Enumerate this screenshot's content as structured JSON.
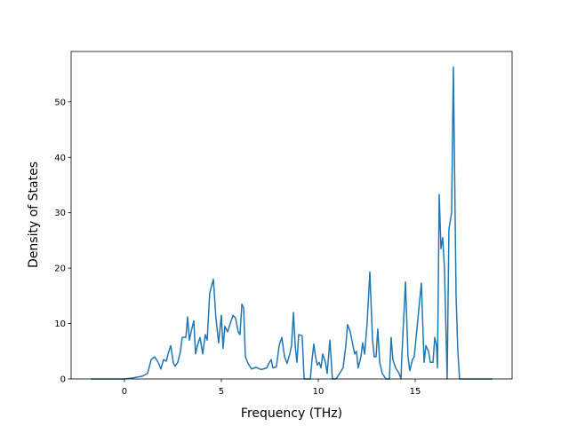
{
  "chart_data": {
    "type": "line",
    "xlabel": "Frequency (THz)",
    "ylabel": "Density of States",
    "xlim": [
      -2.75,
      20.0
    ],
    "ylim": [
      0,
      59.1
    ],
    "xticks": [
      0,
      5,
      10,
      15
    ],
    "yticks": [
      0,
      10,
      20,
      30,
      40,
      50
    ],
    "series": [
      {
        "color": "#1f77b4",
        "x": [
          -1.74,
          0,
          0.46,
          0.92,
          1.19,
          1.38,
          1.56,
          1.74,
          1.88,
          2.02,
          2.16,
          2.29,
          2.39,
          2.52,
          2.61,
          2.75,
          2.89,
          2.98,
          3.17,
          3.26,
          3.35,
          3.44,
          3.58,
          3.67,
          3.76,
          3.9,
          4.04,
          4.17,
          4.27,
          4.4,
          4.59,
          4.72,
          4.86,
          5.0,
          5.09,
          5.18,
          5.32,
          5.46,
          5.6,
          5.73,
          5.87,
          5.96,
          6.06,
          6.15,
          6.24,
          6.38,
          6.56,
          6.79,
          7.06,
          7.34,
          7.48,
          7.57,
          7.66,
          7.84,
          7.98,
          8.12,
          8.26,
          8.39,
          8.53,
          8.62,
          8.72,
          8.81,
          8.9,
          8.99,
          9.17,
          9.27,
          9.59,
          9.68,
          9.77,
          9.86,
          9.95,
          10.05,
          10.14,
          10.23,
          10.37,
          10.46,
          10.6,
          10.73,
          10.92,
          11.28,
          11.42,
          11.51,
          11.65,
          11.79,
          11.88,
          11.97,
          12.06,
          12.2,
          12.29,
          12.39,
          12.52,
          12.66,
          12.8,
          12.89,
          12.98,
          13.07,
          13.17,
          13.3,
          13.49,
          13.67,
          13.76,
          13.85,
          13.99,
          14.17,
          14.27,
          14.31,
          14.5,
          14.63,
          14.72,
          14.86,
          14.95,
          15.09,
          15.32,
          15.46,
          15.55,
          15.69,
          15.78,
          15.92,
          16.01,
          16.1,
          16.15,
          16.24,
          16.33,
          16.42,
          16.51,
          16.65,
          16.74,
          16.88,
          16.97,
          17.11,
          17.2,
          17.29,
          18.99
        ],
        "values": [
          0,
          0,
          0.2,
          0.5,
          1,
          3.5,
          4,
          3,
          1.8,
          3.5,
          3.2,
          5,
          6,
          3,
          2.3,
          3,
          5,
          7.5,
          7.5,
          11.2,
          7,
          8.5,
          10.5,
          4.5,
          6,
          7.5,
          4.5,
          8,
          7,
          15.5,
          18,
          11,
          6.5,
          11.5,
          5.5,
          9.5,
          8.5,
          10,
          11.5,
          11,
          8.5,
          8,
          13.5,
          12.8,
          4,
          2.8,
          1.8,
          2.1,
          1.7,
          2,
          3,
          3.5,
          2,
          2.2,
          6,
          7.5,
          4,
          2.8,
          4.5,
          6,
          12,
          6,
          3,
          8,
          7.8,
          0,
          0,
          3.5,
          6.3,
          4,
          2.5,
          3,
          2,
          4.5,
          3,
          1,
          7,
          0,
          0,
          2,
          6,
          9.8,
          8.5,
          6,
          4.5,
          5,
          2,
          4,
          6.5,
          4.5,
          10,
          19.3,
          7,
          4,
          4,
          9,
          3,
          1,
          0,
          0,
          7.5,
          3.5,
          2,
          1,
          0,
          4,
          17.5,
          4,
          1.5,
          3.5,
          4,
          9,
          17.3,
          3,
          6,
          5,
          3,
          3,
          7.5,
          6,
          2,
          33.3,
          23.5,
          25.5,
          20,
          0,
          27,
          30,
          56.3,
          15,
          5,
          0,
          0
        ]
      }
    ]
  }
}
